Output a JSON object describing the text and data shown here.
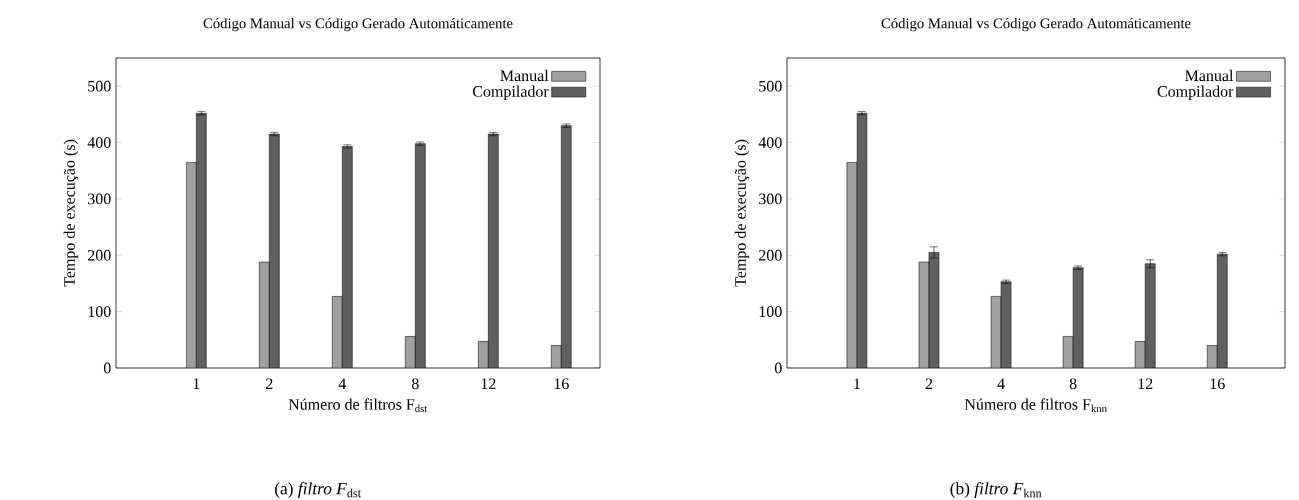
{
  "chart_data": [
    {
      "type": "bar",
      "title": "Código Manual vs Código Gerado Automáticamente",
      "xlabel": "Número de filtros F$_{dst}$",
      "ylabel": "Tempo de execução (s)",
      "categories": [
        "1",
        "2",
        "4",
        "8",
        "12",
        "16"
      ],
      "series": [
        {
          "name": "Manual",
          "color": "#a0a0a0",
          "values": [
            365,
            188,
            127,
            56,
            47,
            40
          ]
        },
        {
          "name": "Compilador",
          "color": "#606060",
          "values": [
            452,
            415,
            393,
            398,
            415,
            430
          ],
          "errors": [
            3,
            3,
            3,
            3,
            3,
            3
          ]
        }
      ],
      "ylim": [
        0,
        550
      ],
      "yticks": [
        0,
        100,
        200,
        300,
        400,
        500
      ],
      "legend": "top right",
      "annotations": [
        "(a) *filtro F*$_{dst}$"
      ]
    },
    {
      "type": "bar",
      "title": "Código Manual vs Código Gerado Automáticamente",
      "xlabel": "Número de filtros F$_{knn}$",
      "ylabel": "Tempo de execução (s)",
      "categories": [
        "1",
        "2",
        "4",
        "8",
        "12",
        "16"
      ],
      "series": [
        {
          "name": "Manual",
          "color": "#a0a0a0",
          "values": [
            365,
            188,
            127,
            56,
            47,
            40
          ]
        },
        {
          "name": "Compilador",
          "color": "#606060",
          "values": [
            452,
            205,
            153,
            178,
            185,
            202
          ],
          "errors": [
            3,
            10,
            3,
            3,
            7,
            3
          ]
        }
      ],
      "ylim": [
        0,
        550
      ],
      "yticks": [
        0,
        100,
        200,
        300,
        400,
        500
      ],
      "legend": "top right",
      "annotations": [
        "(b) *filtro F*$_{knn}$"
      ]
    }
  ]
}
